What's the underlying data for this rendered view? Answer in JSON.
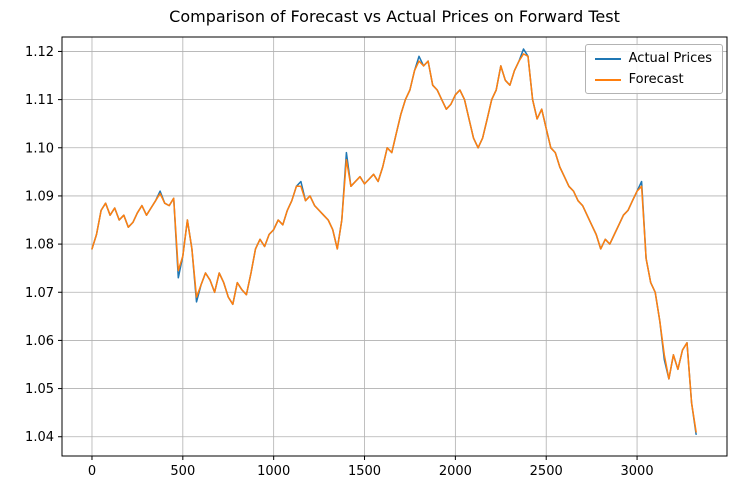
{
  "figure": {
    "background": "#ffffff"
  },
  "chart_data": {
    "type": "line",
    "title": "Comparison of Forecast vs Actual Prices on Forward Test",
    "xlabel": "",
    "ylabel": "",
    "grid": true,
    "grid_color": "#b0b0b0",
    "frame_color": "#000000",
    "legend_position": "upper right",
    "xlim": [
      -165,
      3495
    ],
    "ylim": [
      1.036,
      1.123
    ],
    "xtick_values": [
      0,
      500,
      1000,
      1500,
      2000,
      2500,
      3000
    ],
    "xtick_labels": [
      "0",
      "500",
      "1000",
      "1500",
      "2000",
      "2500",
      "3000"
    ],
    "ytick_values": [
      1.04,
      1.05,
      1.06,
      1.07,
      1.08,
      1.09,
      1.1,
      1.11,
      1.12
    ],
    "ytick_labels": [
      "1.04",
      "1.05",
      "1.06",
      "1.07",
      "1.08",
      "1.09",
      "1.10",
      "1.11",
      "1.12"
    ],
    "x": [
      0,
      25,
      50,
      75,
      100,
      125,
      150,
      175,
      200,
      225,
      250,
      275,
      300,
      325,
      350,
      375,
      400,
      425,
      450,
      475,
      500,
      525,
      550,
      575,
      600,
      625,
      650,
      675,
      700,
      725,
      750,
      775,
      800,
      825,
      850,
      875,
      900,
      925,
      950,
      975,
      1000,
      1025,
      1050,
      1075,
      1100,
      1125,
      1150,
      1175,
      1200,
      1225,
      1250,
      1275,
      1300,
      1325,
      1350,
      1375,
      1400,
      1425,
      1450,
      1475,
      1500,
      1525,
      1550,
      1575,
      1600,
      1625,
      1650,
      1675,
      1700,
      1725,
      1750,
      1775,
      1800,
      1825,
      1850,
      1875,
      1900,
      1925,
      1950,
      1975,
      2000,
      2025,
      2050,
      2075,
      2100,
      2125,
      2150,
      2175,
      2200,
      2225,
      2250,
      2275,
      2300,
      2325,
      2350,
      2375,
      2400,
      2425,
      2450,
      2475,
      2500,
      2525,
      2550,
      2575,
      2600,
      2625,
      2650,
      2675,
      2700,
      2725,
      2750,
      2775,
      2800,
      2825,
      2850,
      2875,
      2900,
      2925,
      2950,
      2975,
      3000,
      3025,
      3050,
      3075,
      3100,
      3125,
      3150,
      3175,
      3200,
      3225,
      3250,
      3275,
      3300,
      3325
    ],
    "series": [
      {
        "name": "Actual Prices",
        "color": "#1f77b4",
        "values": [
          1.079,
          1.082,
          1.087,
          1.0885,
          1.086,
          1.0875,
          1.085,
          1.086,
          1.0835,
          1.0845,
          1.0865,
          1.088,
          1.086,
          1.0875,
          1.089,
          1.091,
          1.0885,
          1.088,
          1.0895,
          1.073,
          1.0775,
          1.085,
          1.079,
          1.068,
          1.0715,
          1.074,
          1.0725,
          1.07,
          1.074,
          1.072,
          1.069,
          1.0675,
          1.072,
          1.0705,
          1.0695,
          1.074,
          1.079,
          1.081,
          1.0795,
          1.082,
          1.083,
          1.085,
          1.084,
          1.087,
          1.089,
          1.092,
          1.093,
          1.089,
          1.09,
          1.088,
          1.087,
          1.086,
          1.085,
          1.083,
          1.079,
          1.085,
          1.099,
          1.092,
          1.093,
          1.094,
          1.0925,
          1.0935,
          1.0945,
          1.093,
          1.096,
          1.1,
          1.099,
          1.103,
          1.107,
          1.11,
          1.112,
          1.116,
          1.119,
          1.117,
          1.118,
          1.113,
          1.112,
          1.11,
          1.108,
          1.109,
          1.111,
          1.112,
          1.11,
          1.106,
          1.102,
          1.1,
          1.102,
          1.106,
          1.11,
          1.112,
          1.117,
          1.114,
          1.113,
          1.116,
          1.118,
          1.1205,
          1.119,
          1.11,
          1.106,
          1.108,
          1.104,
          1.1,
          1.099,
          1.096,
          1.094,
          1.092,
          1.091,
          1.089,
          1.088,
          1.086,
          1.084,
          1.082,
          1.079,
          1.081,
          1.08,
          1.082,
          1.084,
          1.086,
          1.087,
          1.089,
          1.091,
          1.093,
          1.077,
          1.072,
          1.07,
          1.064,
          1.056,
          1.052,
          1.057,
          1.054,
          1.058,
          1.0595,
          1.047,
          1.0405
        ]
      },
      {
        "name": "Forecast",
        "color": "#ff7f0e",
        "values": [
          1.079,
          1.082,
          1.087,
          1.0885,
          1.086,
          1.0875,
          1.085,
          1.086,
          1.0835,
          1.0845,
          1.0865,
          1.088,
          1.086,
          1.0875,
          1.089,
          1.0905,
          1.0885,
          1.088,
          1.0895,
          1.0745,
          1.0775,
          1.085,
          1.079,
          1.069,
          1.0715,
          1.074,
          1.0725,
          1.07,
          1.074,
          1.072,
          1.069,
          1.0675,
          1.072,
          1.0705,
          1.0695,
          1.074,
          1.079,
          1.081,
          1.0795,
          1.082,
          1.083,
          1.085,
          1.084,
          1.087,
          1.089,
          1.092,
          1.092,
          1.089,
          1.09,
          1.088,
          1.087,
          1.086,
          1.085,
          1.083,
          1.079,
          1.085,
          1.0975,
          1.092,
          1.093,
          1.094,
          1.0925,
          1.0935,
          1.0945,
          1.093,
          1.096,
          1.1,
          1.099,
          1.103,
          1.107,
          1.11,
          1.112,
          1.116,
          1.118,
          1.117,
          1.118,
          1.113,
          1.112,
          1.11,
          1.108,
          1.109,
          1.111,
          1.112,
          1.11,
          1.106,
          1.102,
          1.1,
          1.102,
          1.106,
          1.11,
          1.112,
          1.117,
          1.114,
          1.113,
          1.116,
          1.118,
          1.1195,
          1.119,
          1.11,
          1.106,
          1.108,
          1.104,
          1.1,
          1.099,
          1.096,
          1.094,
          1.092,
          1.091,
          1.089,
          1.088,
          1.086,
          1.084,
          1.082,
          1.079,
          1.081,
          1.08,
          1.082,
          1.084,
          1.086,
          1.087,
          1.089,
          1.091,
          1.092,
          1.077,
          1.072,
          1.07,
          1.064,
          1.057,
          1.052,
          1.057,
          1.054,
          1.058,
          1.0595,
          1.047,
          1.041
        ]
      }
    ]
  }
}
